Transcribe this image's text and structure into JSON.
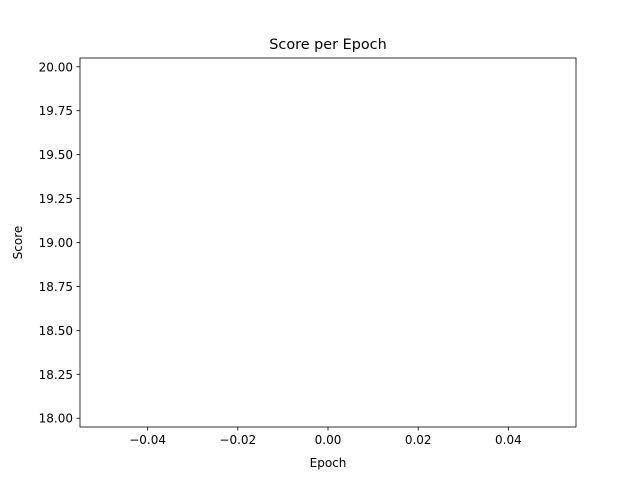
{
  "chart_data": {
    "type": "line",
    "title": "Score per Epoch",
    "xlabel": "Epoch",
    "ylabel": "Score",
    "xlim": [
      -0.055,
      0.055
    ],
    "ylim": [
      17.95,
      20.05
    ],
    "xticks": [
      -0.04,
      -0.02,
      0.0,
      0.02,
      0.04
    ],
    "xtick_labels": [
      "−0.04",
      "−0.02",
      "0.00",
      "0.02",
      "0.04"
    ],
    "yticks": [
      18.0,
      18.25,
      18.5,
      18.75,
      19.0,
      19.25,
      19.5,
      19.75,
      20.0
    ],
    "ytick_labels": [
      "18.00",
      "18.25",
      "18.50",
      "18.75",
      "19.00",
      "19.25",
      "19.50",
      "19.75",
      "20.00"
    ],
    "series": [
      {
        "x": [],
        "y": []
      }
    ],
    "grid": false
  }
}
